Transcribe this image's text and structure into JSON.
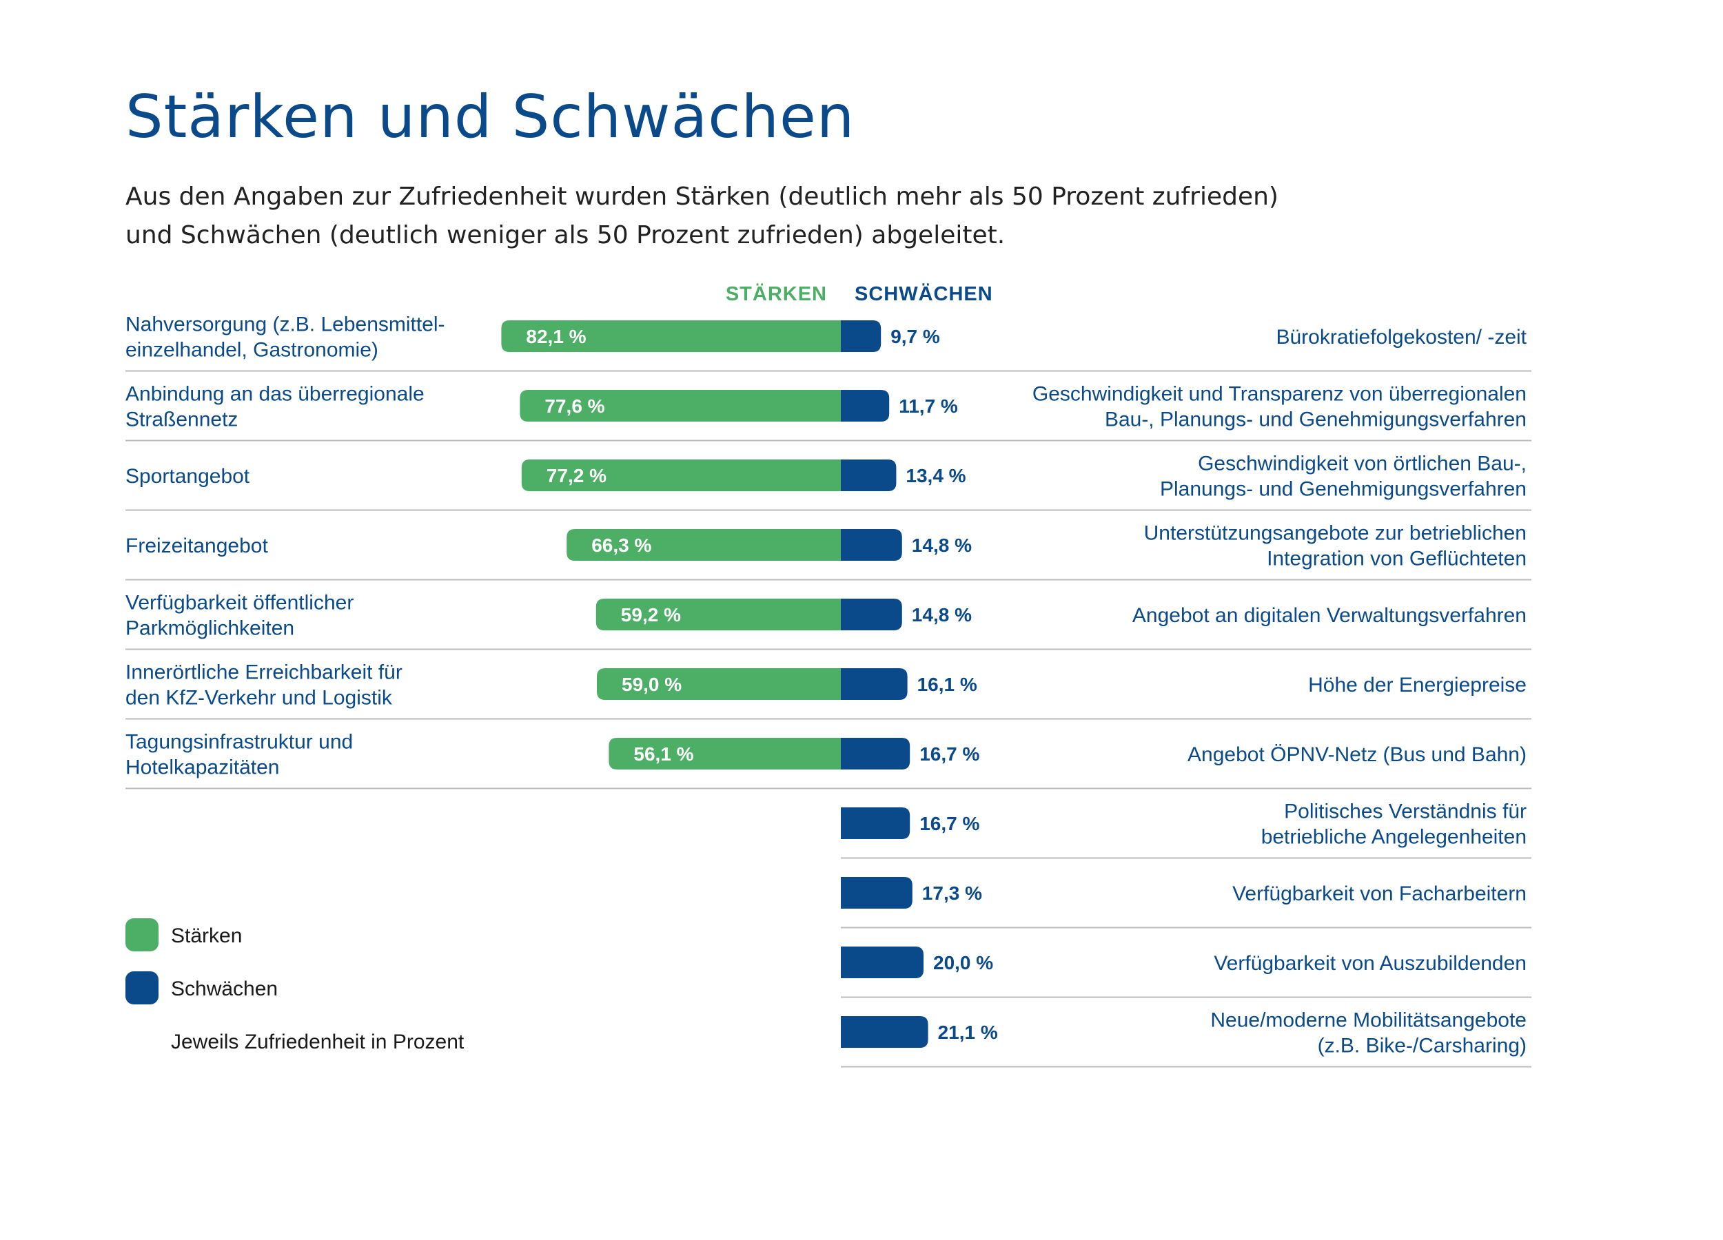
{
  "title": "Stärken und Schwächen",
  "subtitle_line1": "Aus den Angaben zur Zufriedenheit wurden Stärken (deutlich mehr als 50 Prozent zufrieden)",
  "subtitle_line2": "und Schwächen (deutlich weniger als 50 Prozent zufrieden) abgeleitet.",
  "colors": {
    "strength": "#4caf65",
    "weakness": "#0a4a8a",
    "text": "#0a4a8a",
    "rule": "#bbbbbb"
  },
  "chart_data": {
    "type": "bar",
    "title": "Stärken und Schwächen",
    "header_strengths": "STÄRKEN",
    "header_weaknesses": "SCHWÄCHEN",
    "unit": "Prozent",
    "xlim": [
      0,
      100
    ],
    "strengths": [
      {
        "label": [
          "Nahversorgung (z.B. Lebensmittel-",
          "einzelhandel, Gastronomie)"
        ],
        "value": 82.1,
        "value_text": "82,1 %"
      },
      {
        "label": [
          "Anbindung an das überregionale",
          "Straßennetz"
        ],
        "value": 77.6,
        "value_text": "77,6 %"
      },
      {
        "label": [
          "Sportangebot"
        ],
        "value": 77.2,
        "value_text": "77,2 %"
      },
      {
        "label": [
          "Freizeitangebot"
        ],
        "value": 66.3,
        "value_text": "66,3 %"
      },
      {
        "label": [
          "Verfügbarkeit öffentlicher",
          "Parkmöglichkeiten"
        ],
        "value": 59.2,
        "value_text": "59,2 %"
      },
      {
        "label": [
          "Innerörtliche Erreichbarkeit für",
          "den KfZ-Verkehr und Logistik"
        ],
        "value": 59.0,
        "value_text": "59,0 %"
      },
      {
        "label": [
          "Tagungsinfrastruktur und",
          "Hotelkapazitäten"
        ],
        "value": 56.1,
        "value_text": "56,1 %"
      }
    ],
    "weaknesses": [
      {
        "label": [
          "Bürokratiefolgekosten/ -zeit"
        ],
        "value": 9.7,
        "value_text": "9,7 %"
      },
      {
        "label": [
          "Geschwindigkeit und Transparenz von überregionalen",
          "Bau-, Planungs- und Genehmigungsverfahren"
        ],
        "value": 11.7,
        "value_text": "11,7 %"
      },
      {
        "label": [
          "Geschwindigkeit von örtlichen Bau-,",
          "Planungs- und Genehmigungsverfahren"
        ],
        "value": 13.4,
        "value_text": "13,4 %"
      },
      {
        "label": [
          "Unterstützungsangebote zur betrieblichen",
          "Integration von Geflüchteten"
        ],
        "value": 14.8,
        "value_text": "14,8 %"
      },
      {
        "label": [
          "Angebot an digitalen Verwaltungsverfahren"
        ],
        "value": 14.8,
        "value_text": "14,8 %"
      },
      {
        "label": [
          "Höhe der Energiepreise"
        ],
        "value": 16.1,
        "value_text": "16,1 %"
      },
      {
        "label": [
          "Angebot ÖPNV-Netz (Bus und Bahn)"
        ],
        "value": 16.7,
        "value_text": "16,7 %"
      },
      {
        "label": [
          "Politisches Verständnis für",
          "betriebliche Angelegenheiten"
        ],
        "value": 16.7,
        "value_text": "16,7 %"
      },
      {
        "label": [
          "Verfügbarkeit von Facharbeitern"
        ],
        "value": 17.3,
        "value_text": "17,3 %"
      },
      {
        "label": [
          "Verfügbarkeit von Auszubildenden"
        ],
        "value": 20.0,
        "value_text": "20,0 %"
      },
      {
        "label": [
          "Neue/moderne Mobilitätsangebote",
          "(z.B. Bike-/Carsharing)"
        ],
        "value": 21.1,
        "value_text": "21,1 %"
      }
    ],
    "legend": {
      "strength": "Stärken",
      "weakness": "Schwächen",
      "note": "Jeweils Zufriedenheit in Prozent"
    }
  }
}
